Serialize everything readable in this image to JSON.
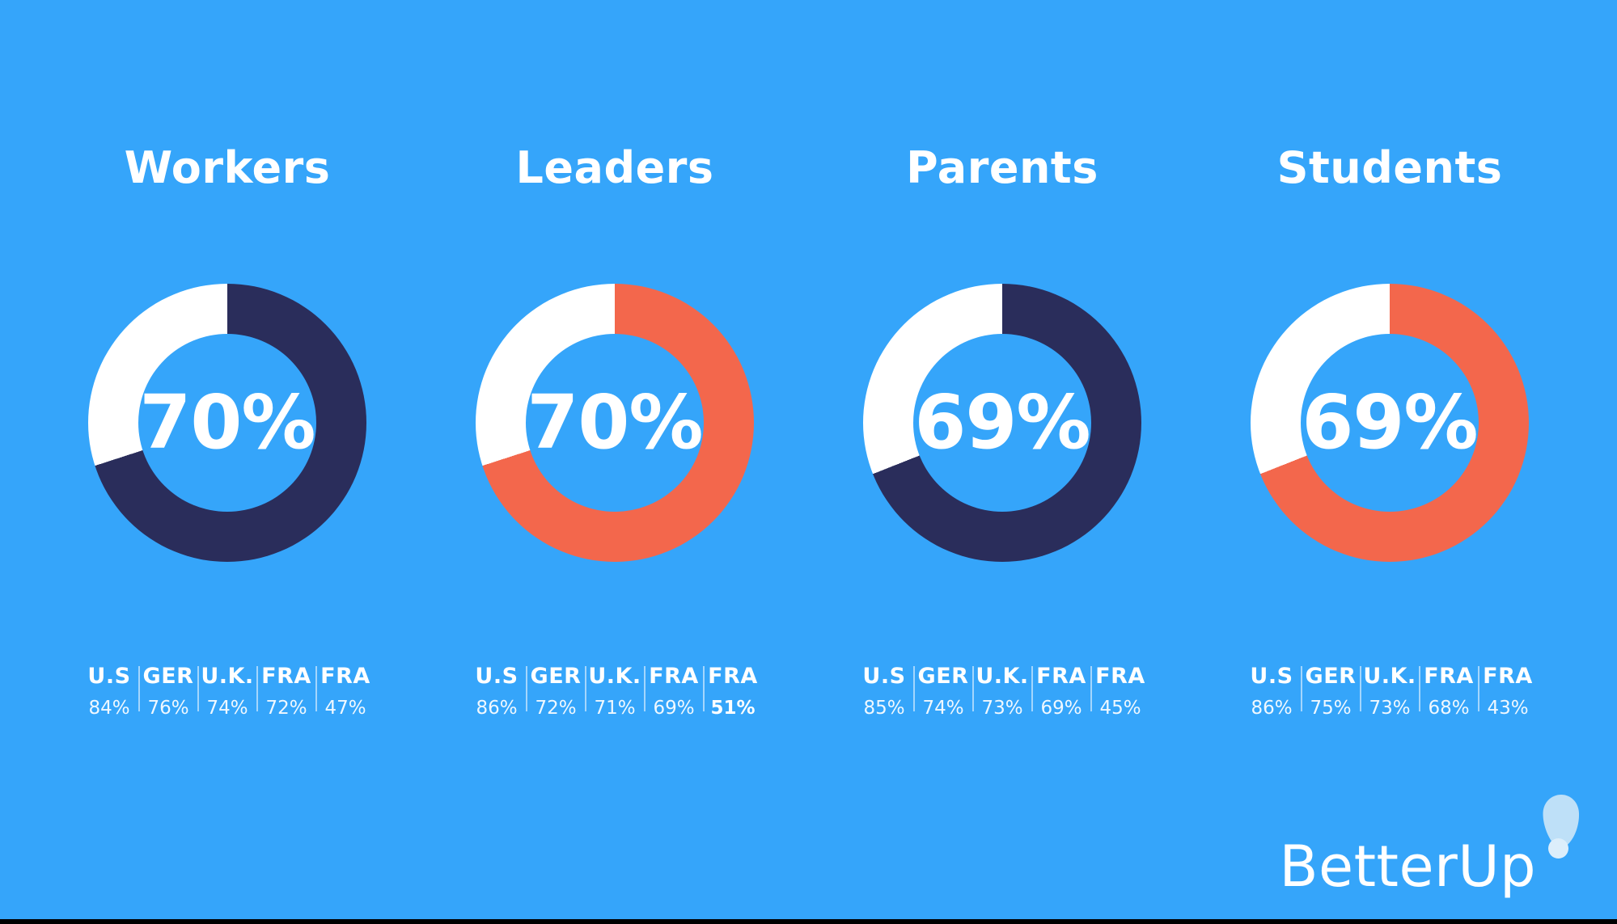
{
  "colors": {
    "background": "#35A5FA",
    "navy": "#2A2D5B",
    "coral": "#F3674C",
    "white": "#FFFFFF",
    "divider": "rgba(255,255,255,0.55)",
    "bottom_bar": "#000000"
  },
  "logo": {
    "text": "BetterUp",
    "balloon_color": "#BEE0F8",
    "balloon_highlight": "#DCEEFB"
  },
  "chart_data": [
    {
      "type": "pie",
      "title": "Workers",
      "center_label": "70%",
      "value_pct": 70,
      "ring_color": "#2A2D5B",
      "remainder_color": "#FFFFFF",
      "legend_position": "below",
      "stats": [
        {
          "label": "U.S",
          "value": "84%",
          "bold": false
        },
        {
          "label": "GER",
          "value": "76%",
          "bold": false
        },
        {
          "label": "U.K.",
          "value": "74%",
          "bold": false
        },
        {
          "label": "FRA",
          "value": "72%",
          "bold": false
        },
        {
          "label": "FRA",
          "value": "47%",
          "bold": false
        }
      ]
    },
    {
      "type": "pie",
      "title": "Leaders",
      "center_label": "70%",
      "value_pct": 70,
      "ring_color": "#F3674C",
      "remainder_color": "#FFFFFF",
      "legend_position": "below",
      "stats": [
        {
          "label": "U.S",
          "value": "86%",
          "bold": false
        },
        {
          "label": "GER",
          "value": "72%",
          "bold": false
        },
        {
          "label": "U.K.",
          "value": "71%",
          "bold": false
        },
        {
          "label": "FRA",
          "value": "69%",
          "bold": false
        },
        {
          "label": "FRA",
          "value": "51%",
          "bold": true
        }
      ]
    },
    {
      "type": "pie",
      "title": "Parents",
      "center_label": "69%",
      "value_pct": 69,
      "ring_color": "#2A2D5B",
      "remainder_color": "#FFFFFF",
      "legend_position": "below",
      "stats": [
        {
          "label": "U.S",
          "value": "85%",
          "bold": false
        },
        {
          "label": "GER",
          "value": "74%",
          "bold": false
        },
        {
          "label": "U.K.",
          "value": "73%",
          "bold": false
        },
        {
          "label": "FRA",
          "value": "69%",
          "bold": false
        },
        {
          "label": "FRA",
          "value": "45%",
          "bold": false
        }
      ]
    },
    {
      "type": "pie",
      "title": "Students",
      "center_label": "69%",
      "value_pct": 69,
      "ring_color": "#F3674C",
      "remainder_color": "#FFFFFF",
      "legend_position": "below",
      "stats": [
        {
          "label": "U.S",
          "value": "86%",
          "bold": false
        },
        {
          "label": "GER",
          "value": "75%",
          "bold": false
        },
        {
          "label": "U.K.",
          "value": "73%",
          "bold": false
        },
        {
          "label": "FRA",
          "value": "68%",
          "bold": false
        },
        {
          "label": "FRA",
          "value": "43%",
          "bold": false
        }
      ]
    }
  ]
}
